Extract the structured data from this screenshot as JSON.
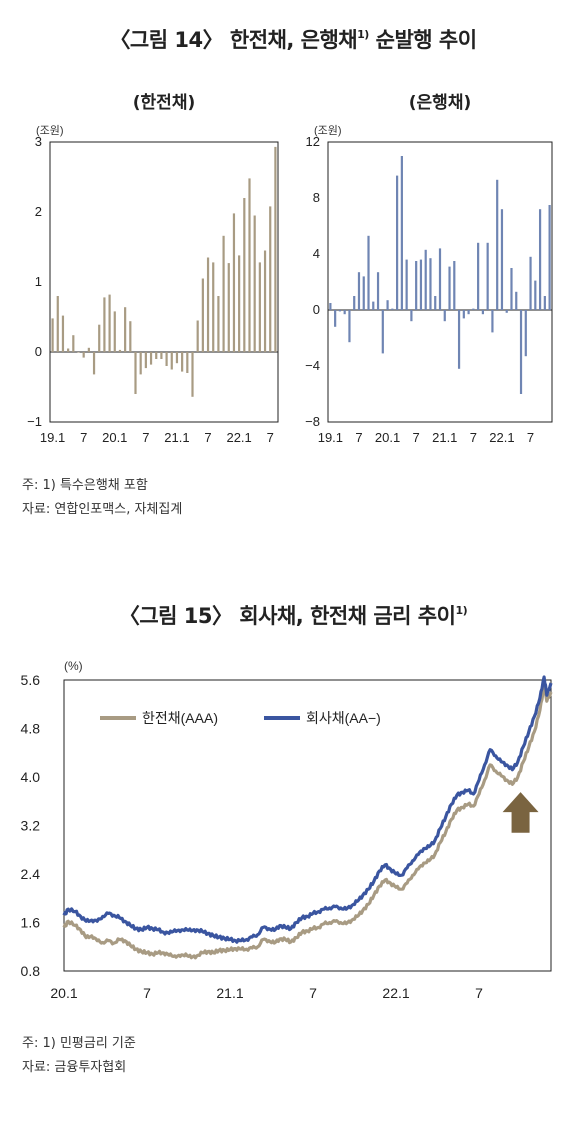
{
  "figure14": {
    "title": "〈그림 14〉 한전채, 은행채",
    "title_sup": "1)",
    "title_suffix": " 순발행 추이",
    "notes": [
      "주: 1) 특수은행채 포함",
      "자료: 연합인포맥스, 자체집계"
    ]
  },
  "figure15": {
    "title": "〈그림 15〉 회사채, 한전채 금리 추이",
    "title_sup": "1)",
    "notes": [
      "주: 1) 민평금리 기준",
      "자료: 금융투자협회"
    ]
  },
  "colors": {
    "kepco_bar": "#a89b83",
    "bank_bar": "#6f85b3",
    "aaa_line": "#a89b83",
    "aa_line": "#3a55a0",
    "arrow": "#7a6440",
    "frame": "#222222",
    "zero_line": "#222222"
  },
  "chart_data": [
    {
      "type": "bar",
      "title": "(한전채)",
      "ylabel": "(조원)",
      "ylim": [
        -1,
        3
      ],
      "yticks": [
        "−1",
        "0",
        "1",
        "2",
        "3"
      ],
      "xticks": [
        {
          "label": "19.1",
          "index": 0
        },
        {
          "label": "7",
          "index": 6
        },
        {
          "label": "20.1",
          "index": 12
        },
        {
          "label": "7",
          "index": 18
        },
        {
          "label": "21.1",
          "index": 24
        },
        {
          "label": "7",
          "index": 30
        },
        {
          "label": "22.1",
          "index": 36
        },
        {
          "label": "7",
          "index": 42
        }
      ],
      "values": [
        0.48,
        0.8,
        0.52,
        0.05,
        0.24,
        0.0,
        -0.08,
        0.06,
        -0.32,
        0.39,
        0.78,
        0.82,
        0.58,
        0.03,
        0.64,
        0.44,
        -0.6,
        -0.32,
        -0.23,
        -0.18,
        -0.1,
        -0.1,
        -0.2,
        -0.25,
        -0.16,
        -0.28,
        -0.3,
        -0.64,
        0.45,
        1.05,
        1.35,
        1.28,
        0.8,
        1.66,
        1.27,
        1.98,
        1.38,
        2.2,
        2.48,
        1.95,
        1.28,
        1.45,
        2.08,
        2.93
      ]
    },
    {
      "type": "bar",
      "title": "(은행채)",
      "ylabel": "(조원)",
      "ylim": [
        -8,
        12
      ],
      "yticks": [
        "−8",
        "−4",
        "0",
        "4",
        "8",
        "12"
      ],
      "xticks": [
        {
          "label": "19.1",
          "index": 0
        },
        {
          "label": "7",
          "index": 6
        },
        {
          "label": "20.1",
          "index": 12
        },
        {
          "label": "7",
          "index": 18
        },
        {
          "label": "21.1",
          "index": 24
        },
        {
          "label": "7",
          "index": 30
        },
        {
          "label": "22.1",
          "index": 36
        },
        {
          "label": "7",
          "index": 42
        }
      ],
      "values": [
        0.5,
        -1.2,
        -0.1,
        -0.3,
        -2.3,
        1.0,
        2.7,
        2.4,
        5.3,
        0.6,
        2.7,
        -3.1,
        0.7,
        0.1,
        9.6,
        11.0,
        3.6,
        -0.8,
        3.5,
        3.6,
        4.3,
        3.7,
        1.0,
        4.4,
        -0.8,
        3.1,
        3.5,
        -4.2,
        -0.6,
        -0.3,
        0.1,
        4.8,
        -0.3,
        4.8,
        -1.6,
        9.3,
        7.2,
        -0.2,
        3.0,
        1.3,
        -6.0,
        -3.3,
        3.8,
        2.1,
        7.2,
        1.0,
        7.5
      ]
    },
    {
      "type": "line",
      "title": "",
      "ylabel": "(%)",
      "ylim": [
        0.8,
        5.6
      ],
      "yticks": [
        "0.8",
        "1.6",
        "2.4",
        "3.2",
        "4.0",
        "4.8",
        "5.6"
      ],
      "xticks": [
        {
          "label": "20.1",
          "t": 0
        },
        {
          "label": "7",
          "t": 6
        },
        {
          "label": "21.1",
          "t": 12
        },
        {
          "label": "7",
          "t": 18
        },
        {
          "label": "22.1",
          "t": 24
        },
        {
          "label": "7",
          "t": 30
        }
      ],
      "x_range_months": [
        0,
        35.2
      ],
      "series": [
        {
          "name": "한전채(AAA)",
          "key": "aaa",
          "points": [
            [
              0,
              1.52
            ],
            [
              0.3,
              1.62
            ],
            [
              0.8,
              1.55
            ],
            [
              1.2,
              1.48
            ],
            [
              1.6,
              1.35
            ],
            [
              2.0,
              1.38
            ],
            [
              2.4,
              1.3
            ],
            [
              2.8,
              1.27
            ],
            [
              3.2,
              1.3
            ],
            [
              3.6,
              1.26
            ],
            [
              4.0,
              1.32
            ],
            [
              4.4,
              1.3
            ],
            [
              4.8,
              1.22
            ],
            [
              5.2,
              1.16
            ],
            [
              5.6,
              1.12
            ],
            [
              6.0,
              1.1
            ],
            [
              6.4,
              1.08
            ],
            [
              6.8,
              1.1
            ],
            [
              7.2,
              1.1
            ],
            [
              7.6,
              1.06
            ],
            [
              8.0,
              1.05
            ],
            [
              8.4,
              1.04
            ],
            [
              8.8,
              1.08
            ],
            [
              9.2,
              1.02
            ],
            [
              9.6,
              1.05
            ],
            [
              10.0,
              1.1
            ],
            [
              10.4,
              1.12
            ],
            [
              10.8,
              1.1
            ],
            [
              11.2,
              1.14
            ],
            [
              11.6,
              1.14
            ],
            [
              12.0,
              1.15
            ],
            [
              12.4,
              1.17
            ],
            [
              12.8,
              1.16
            ],
            [
              13.2,
              1.16
            ],
            [
              13.6,
              1.18
            ],
            [
              14.0,
              1.2
            ],
            [
              14.4,
              1.32
            ],
            [
              14.8,
              1.3
            ],
            [
              15.2,
              1.26
            ],
            [
              15.6,
              1.33
            ],
            [
              16.0,
              1.32
            ],
            [
              16.4,
              1.28
            ],
            [
              16.8,
              1.35
            ],
            [
              17.2,
              1.44
            ],
            [
              17.6,
              1.46
            ],
            [
              18.0,
              1.5
            ],
            [
              18.4,
              1.52
            ],
            [
              18.8,
              1.58
            ],
            [
              19.2,
              1.6
            ],
            [
              19.6,
              1.62
            ],
            [
              20.0,
              1.6
            ],
            [
              20.4,
              1.58
            ],
            [
              20.8,
              1.64
            ],
            [
              21.2,
              1.7
            ],
            [
              21.6,
              1.8
            ],
            [
              22.0,
              1.9
            ],
            [
              22.4,
              2.05
            ],
            [
              22.8,
              2.2
            ],
            [
              23.2,
              2.3
            ],
            [
              23.6,
              2.25
            ],
            [
              24.0,
              2.18
            ],
            [
              24.4,
              2.15
            ],
            [
              24.8,
              2.25
            ],
            [
              25.2,
              2.38
            ],
            [
              25.6,
              2.48
            ],
            [
              26.0,
              2.58
            ],
            [
              26.4,
              2.62
            ],
            [
              26.8,
              2.72
            ],
            [
              27.2,
              2.92
            ],
            [
              27.6,
              3.1
            ],
            [
              28.0,
              3.3
            ],
            [
              28.4,
              3.45
            ],
            [
              28.8,
              3.5
            ],
            [
              29.2,
              3.55
            ],
            [
              29.6,
              3.52
            ],
            [
              30.0,
              3.72
            ],
            [
              30.4,
              3.95
            ],
            [
              30.8,
              4.2
            ],
            [
              31.2,
              4.1
            ],
            [
              31.6,
              4.02
            ],
            [
              32.0,
              3.95
            ],
            [
              32.4,
              3.88
            ],
            [
              32.8,
              4.0
            ],
            [
              33.2,
              4.25
            ],
            [
              33.6,
              4.5
            ],
            [
              34.0,
              4.75
            ],
            [
              34.4,
              5.1
            ],
            [
              34.7,
              5.5
            ],
            [
              34.9,
              5.25
            ],
            [
              35.2,
              5.4
            ]
          ]
        },
        {
          "name": "회사채(AA−)",
          "key": "aa",
          "points": [
            [
              0,
              1.72
            ],
            [
              0.3,
              1.82
            ],
            [
              0.8,
              1.78
            ],
            [
              1.2,
              1.7
            ],
            [
              1.6,
              1.62
            ],
            [
              2.0,
              1.64
            ],
            [
              2.4,
              1.62
            ],
            [
              2.8,
              1.7
            ],
            [
              3.2,
              1.75
            ],
            [
              3.6,
              1.72
            ],
            [
              4.0,
              1.68
            ],
            [
              4.4,
              1.62
            ],
            [
              4.8,
              1.55
            ],
            [
              5.2,
              1.5
            ],
            [
              5.6,
              1.48
            ],
            [
              6.0,
              1.52
            ],
            [
              6.4,
              1.5
            ],
            [
              6.8,
              1.48
            ],
            [
              7.2,
              1.44
            ],
            [
              7.6,
              1.42
            ],
            [
              8.0,
              1.48
            ],
            [
              8.4,
              1.45
            ],
            [
              8.8,
              1.5
            ],
            [
              9.2,
              1.46
            ],
            [
              9.6,
              1.48
            ],
            [
              10.0,
              1.45
            ],
            [
              10.4,
              1.42
            ],
            [
              10.8,
              1.38
            ],
            [
              11.2,
              1.36
            ],
            [
              11.6,
              1.34
            ],
            [
              12.0,
              1.32
            ],
            [
              12.4,
              1.3
            ],
            [
              12.8,
              1.3
            ],
            [
              13.2,
              1.32
            ],
            [
              13.6,
              1.36
            ],
            [
              14.0,
              1.4
            ],
            [
              14.4,
              1.52
            ],
            [
              14.8,
              1.5
            ],
            [
              15.2,
              1.47
            ],
            [
              15.6,
              1.55
            ],
            [
              16.0,
              1.52
            ],
            [
              16.4,
              1.5
            ],
            [
              16.8,
              1.6
            ],
            [
              17.2,
              1.68
            ],
            [
              17.6,
              1.7
            ],
            [
              18.0,
              1.75
            ],
            [
              18.4,
              1.78
            ],
            [
              18.8,
              1.82
            ],
            [
              19.2,
              1.84
            ],
            [
              19.6,
              1.86
            ],
            [
              20.0,
              1.84
            ],
            [
              20.4,
              1.82
            ],
            [
              20.8,
              1.88
            ],
            [
              21.2,
              1.95
            ],
            [
              21.6,
              2.05
            ],
            [
              22.0,
              2.15
            ],
            [
              22.4,
              2.28
            ],
            [
              22.8,
              2.45
            ],
            [
              23.2,
              2.55
            ],
            [
              23.6,
              2.48
            ],
            [
              24.0,
              2.4
            ],
            [
              24.4,
              2.38
            ],
            [
              24.8,
              2.5
            ],
            [
              25.2,
              2.62
            ],
            [
              25.6,
              2.72
            ],
            [
              26.0,
              2.82
            ],
            [
              26.4,
              2.85
            ],
            [
              26.8,
              2.95
            ],
            [
              27.2,
              3.15
            ],
            [
              27.6,
              3.35
            ],
            [
              28.0,
              3.55
            ],
            [
              28.4,
              3.7
            ],
            [
              28.8,
              3.75
            ],
            [
              29.2,
              3.78
            ],
            [
              29.6,
              3.72
            ],
            [
              30.0,
              3.95
            ],
            [
              30.4,
              4.2
            ],
            [
              30.8,
              4.45
            ],
            [
              31.2,
              4.35
            ],
            [
              31.6,
              4.25
            ],
            [
              32.0,
              4.2
            ],
            [
              32.4,
              4.12
            ],
            [
              32.8,
              4.25
            ],
            [
              33.2,
              4.5
            ],
            [
              33.6,
              4.75
            ],
            [
              34.0,
              5.0
            ],
            [
              34.4,
              5.3
            ],
            [
              34.7,
              5.65
            ],
            [
              34.9,
              5.35
            ],
            [
              35.2,
              5.55
            ]
          ]
        }
      ],
      "legend": "top-left",
      "annotation": "up-arrow"
    }
  ]
}
